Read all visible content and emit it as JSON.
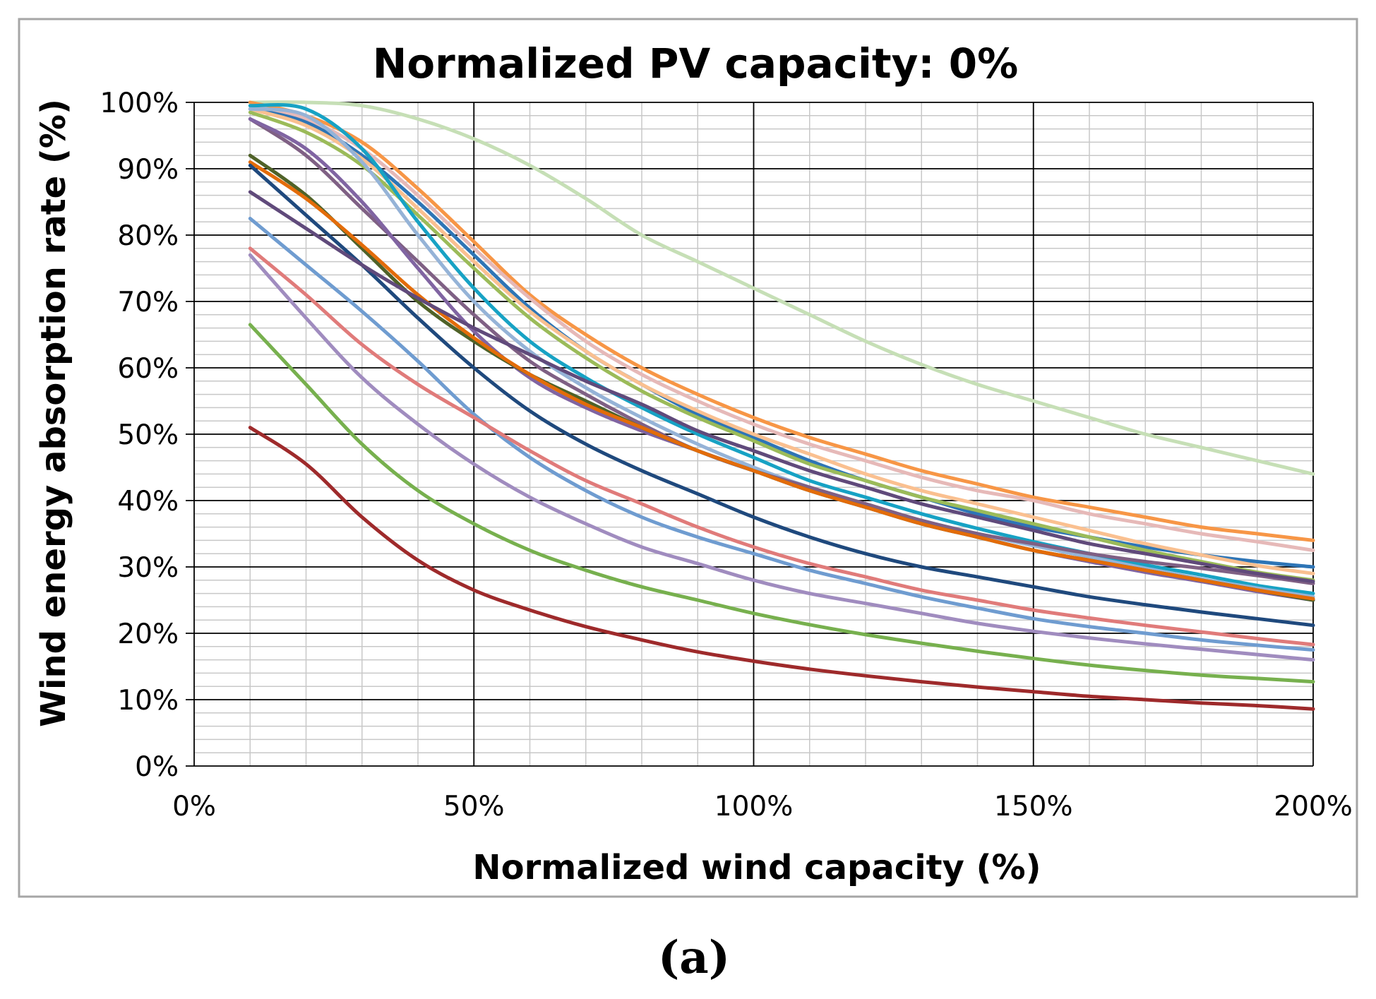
{
  "caption": "(a)",
  "chart_data": {
    "type": "line",
    "title": "Normalized PV capacity: 0%",
    "xlabel": "Normalized wind capacity (%)",
    "ylabel": "Wind energy absorption rate (%)",
    "xlim": [
      0,
      200
    ],
    "ylim": [
      0,
      100
    ],
    "x_ticks": [
      0,
      50,
      100,
      150,
      200
    ],
    "x_tick_labels": [
      "0%",
      "50%",
      "100%",
      "150%",
      "200%"
    ],
    "y_ticks": [
      0,
      10,
      20,
      30,
      40,
      50,
      60,
      70,
      80,
      90,
      100
    ],
    "y_tick_labels": [
      "0%",
      "10%",
      "20%",
      "30%",
      "40%",
      "50%",
      "60%",
      "70%",
      "80%",
      "90%",
      "100%"
    ],
    "grid": true,
    "legend": "none",
    "x": [
      10,
      20,
      30,
      40,
      50,
      60,
      70,
      80,
      90,
      100,
      110,
      120,
      130,
      140,
      150,
      160,
      170,
      180,
      190,
      200
    ],
    "series": [
      {
        "name": "series-1",
        "color": "#c6dfb6",
        "values": [
          100,
          100,
          99.5,
          97.5,
          94.5,
          90.5,
          85.5,
          80,
          76,
          72,
          68,
          64,
          60.5,
          57.5,
          55,
          52.5,
          50,
          48,
          46,
          44
        ]
      },
      {
        "name": "series-2",
        "color": "#f79646",
        "values": [
          100,
          98,
          94,
          87,
          79,
          71,
          65,
          60,
          56,
          52.5,
          49.5,
          47,
          44.5,
          42.5,
          40.5,
          39,
          37.5,
          36,
          35,
          34
        ]
      },
      {
        "name": "series-3",
        "color": "#e6b9b8",
        "values": [
          99.5,
          97.5,
          93,
          86,
          78,
          70.5,
          64,
          59,
          55,
          51.5,
          48.5,
          46,
          43.5,
          41.5,
          40,
          38,
          36.5,
          35,
          33.8,
          32.5
        ]
      },
      {
        "name": "series-4",
        "color": "#2e75b6",
        "values": [
          99,
          97,
          92,
          85,
          77,
          69,
          62.5,
          57.5,
          53,
          49.5,
          46,
          43,
          40.5,
          38,
          36,
          34.5,
          33,
          31.8,
          30.8,
          30
        ]
      },
      {
        "name": "series-5",
        "color": "#fac090",
        "values": [
          99,
          96.5,
          91.5,
          84,
          76,
          68.5,
          62.5,
          57.5,
          53.5,
          50,
          47,
          44,
          41.5,
          39.5,
          37.5,
          35.5,
          33.5,
          31.8,
          30.2,
          29
        ]
      },
      {
        "name": "series-6",
        "color": "#9bbb59",
        "values": [
          98.5,
          95.5,
          90.5,
          83,
          75,
          67.5,
          61.5,
          56.5,
          52.5,
          49,
          45.5,
          43,
          40.5,
          38.5,
          36.5,
          34.5,
          32.5,
          30.8,
          29.2,
          28
        ]
      },
      {
        "name": "series-7",
        "color": "#17a2c4",
        "values": [
          99.5,
          99,
          93,
          82,
          72,
          64,
          58.5,
          54,
          50,
          46.5,
          43,
          40.5,
          38,
          35.8,
          33.8,
          32,
          30.3,
          28.8,
          27.2,
          26
        ]
      },
      {
        "name": "series-8",
        "color": "#95b3d7",
        "values": [
          99,
          98,
          91,
          80,
          70,
          62.5,
          57,
          52.5,
          48.5,
          45,
          42,
          39.5,
          37,
          35,
          33.2,
          31.5,
          29.8,
          28.2,
          26.8,
          25.5
        ]
      },
      {
        "name": "series-9",
        "color": "#7f6084",
        "values": [
          97.5,
          92,
          84,
          76,
          68,
          61,
          56,
          51.5,
          47.5,
          44.5,
          42,
          39.5,
          37,
          35,
          33.5,
          32,
          30.8,
          29.8,
          28.7,
          27.5
        ]
      },
      {
        "name": "series-10",
        "color": "#8064a2",
        "values": [
          97.5,
          93,
          85,
          75,
          65.5,
          58.5,
          54,
          50.5,
          47.5,
          44.5,
          41.5,
          39,
          36.5,
          34.5,
          32.5,
          30.8,
          29.2,
          27.8,
          26.3,
          25
        ]
      },
      {
        "name": "series-11",
        "color": "#4f6228",
        "values": [
          92,
          86,
          78,
          70,
          64,
          59,
          55,
          51,
          47.5,
          44.5,
          41.5,
          39,
          36.5,
          34.5,
          32.5,
          31,
          29.5,
          28,
          26.5,
          25
        ]
      },
      {
        "name": "series-12",
        "color": "#e36c09",
        "values": [
          91,
          85.5,
          78.5,
          71,
          64.5,
          59,
          54.5,
          51,
          47.5,
          44.5,
          41.5,
          39,
          36.5,
          34.5,
          32.5,
          31,
          29.5,
          28,
          26.5,
          25.2
        ]
      },
      {
        "name": "series-13",
        "color": "#1f497d",
        "values": [
          90.5,
          83,
          75.5,
          67.5,
          60,
          53.5,
          48.5,
          44.5,
          41,
          37.5,
          34.5,
          32,
          30,
          28.5,
          27,
          25.5,
          24.3,
          23.2,
          22.2,
          21.2
        ]
      },
      {
        "name": "series-14",
        "color": "#604a7b",
        "values": [
          86.5,
          81,
          75.5,
          70.5,
          66,
          62,
          58,
          54.5,
          50.5,
          47.5,
          44.5,
          42,
          39.5,
          37.5,
          35.5,
          33.5,
          32,
          30.5,
          29,
          27.8
        ]
      },
      {
        "name": "series-15",
        "color": "#6f9cd0",
        "values": [
          82.5,
          75.5,
          68.5,
          61,
          53,
          46.5,
          41.5,
          37.5,
          34.5,
          32,
          29.5,
          27.5,
          25.5,
          23.8,
          22.2,
          21,
          20,
          19,
          18.2,
          17.5
        ]
      },
      {
        "name": "series-16",
        "color": "#e07b7a",
        "values": [
          78,
          71,
          63.5,
          57.5,
          52.5,
          47.5,
          43,
          39.5,
          36,
          33,
          30.5,
          28.5,
          26.5,
          25,
          23.5,
          22.3,
          21.2,
          20.2,
          19.2,
          18.3
        ]
      },
      {
        "name": "series-17",
        "color": "#a08cbf",
        "values": [
          77,
          67.5,
          58.5,
          51.5,
          45.5,
          40.5,
          36.5,
          33,
          30.5,
          28,
          26,
          24.5,
          23,
          21.5,
          20.3,
          19.3,
          18.4,
          17.6,
          16.8,
          16
        ]
      },
      {
        "name": "series-18",
        "color": "#77b04e",
        "values": [
          66.5,
          57.5,
          48.5,
          41.5,
          36.5,
          32.5,
          29.5,
          27,
          25,
          23,
          21.3,
          19.8,
          18.5,
          17.3,
          16.2,
          15.2,
          14.4,
          13.7,
          13.2,
          12.7
        ]
      },
      {
        "name": "series-19",
        "color": "#9e2a2b",
        "values": [
          51,
          45.5,
          37.5,
          31,
          26.5,
          23.5,
          21,
          19,
          17.2,
          15.8,
          14.6,
          13.6,
          12.7,
          11.9,
          11.2,
          10.5,
          10,
          9.5,
          9.1,
          8.6
        ]
      }
    ]
  }
}
